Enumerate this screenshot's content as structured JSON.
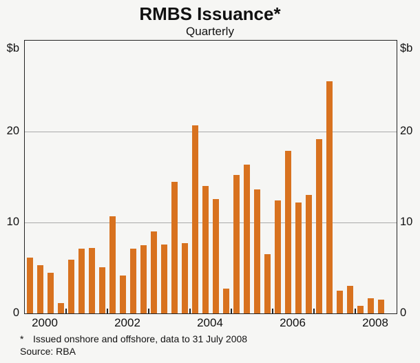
{
  "page": {
    "background": "#f6f6f4"
  },
  "chart_data": {
    "type": "bar",
    "title": "RMBS Issuance*",
    "subtitle": "Quarterly",
    "ylabel": "$b",
    "unit_label_left": "$b",
    "unit_label_right": "$b",
    "ylim": [
      0,
      30
    ],
    "yticks": [
      0,
      10,
      20
    ],
    "grid": true,
    "legend": "none",
    "bar_color": "#d8721f",
    "x_slots": 36,
    "x_axis_note": "quarterly bars, 2000Q1 through 2008Q3; year boundary ticks each year",
    "categories": [
      "2000Q1",
      "2000Q2",
      "2000Q3",
      "2000Q4",
      "2001Q1",
      "2001Q2",
      "2001Q3",
      "2001Q4",
      "2002Q1",
      "2002Q2",
      "2002Q3",
      "2002Q4",
      "2003Q1",
      "2003Q2",
      "2003Q3",
      "2003Q4",
      "2004Q1",
      "2004Q2",
      "2004Q3",
      "2004Q4",
      "2005Q1",
      "2005Q2",
      "2005Q3",
      "2005Q4",
      "2006Q1",
      "2006Q2",
      "2006Q3",
      "2006Q4",
      "2007Q1",
      "2007Q2",
      "2007Q3",
      "2007Q4",
      "2008Q1",
      "2008Q2",
      "2008Q3"
    ],
    "values": [
      6.1,
      5.3,
      4.5,
      1.1,
      5.9,
      7.1,
      7.2,
      5.1,
      10.7,
      4.2,
      7.1,
      7.5,
      9.0,
      7.6,
      14.5,
      7.7,
      20.7,
      14.0,
      12.6,
      2.7,
      15.2,
      16.4,
      13.6,
      6.5,
      12.4,
      17.9,
      12.2,
      13.0,
      19.2,
      25.5,
      2.5,
      3.0,
      0.8,
      1.7,
      1.5
    ],
    "x_tick_labels": [
      {
        "label": "2000",
        "slot": 2
      },
      {
        "label": "2002",
        "slot": 10
      },
      {
        "label": "2004",
        "slot": 18
      },
      {
        "label": "2006",
        "slot": 26
      },
      {
        "label": "2008",
        "slot": 34
      }
    ]
  },
  "footnote": {
    "marker": "*",
    "text": "Issued onshore and offshore, data to 31 July 2008"
  },
  "source": "Source: RBA"
}
